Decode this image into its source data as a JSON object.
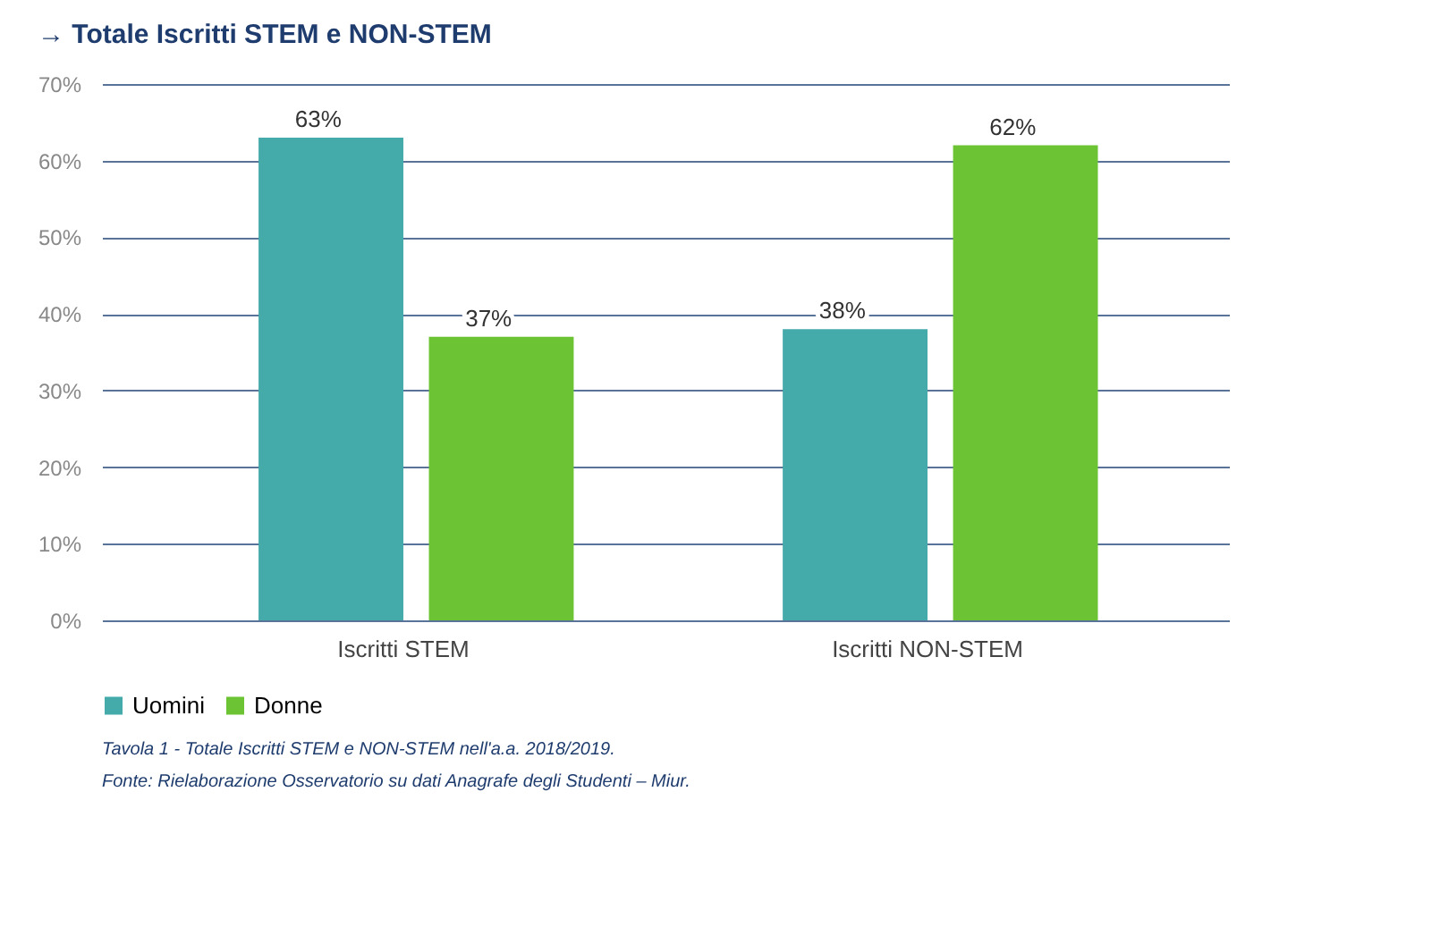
{
  "chart_data": {
    "type": "bar",
    "title": "→ Totale Iscritti STEM e NON-STEM",
    "categories": [
      "Iscritti STEM",
      "Iscritti NON-STEM"
    ],
    "series": [
      {
        "name": "Uomini",
        "color": "#45aaaa",
        "values": [
          63,
          38
        ],
        "value_labels": [
          "63%",
          "38%"
        ]
      },
      {
        "name": "Donne",
        "color": "#6cc434",
        "values": [
          37,
          62
        ],
        "value_labels": [
          "37%",
          "62%"
        ]
      }
    ],
    "ylim": [
      0,
      70
    ],
    "yticks": [
      {
        "value": 0,
        "label": "0%"
      },
      {
        "value": 10,
        "label": "10%"
      },
      {
        "value": 20,
        "label": "20%"
      },
      {
        "value": 30,
        "label": "30%"
      },
      {
        "value": 40,
        "label": "40%"
      },
      {
        "value": 50,
        "label": "50%"
      },
      {
        "value": 60,
        "label": "60%"
      },
      {
        "value": 70,
        "label": "70%"
      }
    ],
    "grid": "y",
    "legend": "bottom",
    "annotations": [
      "Tavola 1 - Totale Iscritti STEM e NON-STEM nell'a.a. 2018/2019.",
      "Fonte: Rielaborazione Osservatorio su dati Anagrafe degli Studenti – Miur."
    ]
  }
}
